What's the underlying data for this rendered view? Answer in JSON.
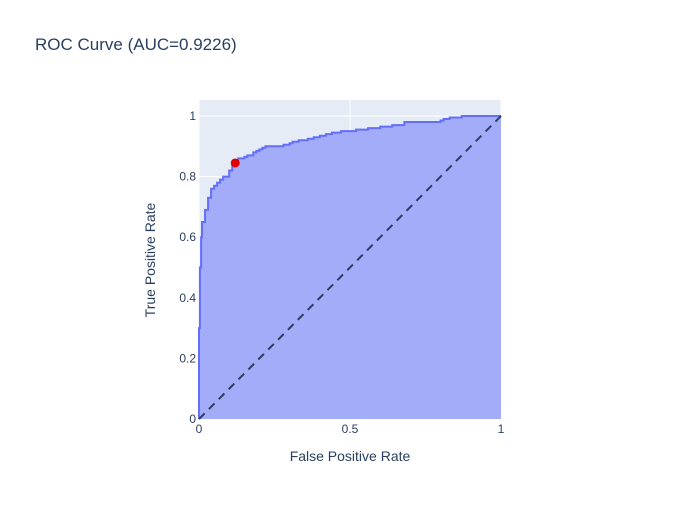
{
  "chart_data": {
    "type": "area",
    "title": "ROC Curve (AUC=0.9226)",
    "xlabel": "False Positive Rate",
    "ylabel": "True Positive Rate",
    "xlim": [
      0,
      1
    ],
    "ylim": [
      0,
      1
    ],
    "x_ticks": [
      0,
      0.5,
      1
    ],
    "x_tick_labels": [
      "0",
      "0.5",
      "1"
    ],
    "y_ticks": [
      0,
      0.2,
      0.4,
      0.6,
      0.8,
      1
    ],
    "y_tick_labels": [
      "0",
      "0.2",
      "0.4",
      "0.6",
      "0.8",
      "1"
    ],
    "grid": true,
    "legend": "none",
    "colors": {
      "plot_background": "#e5ecf6",
      "grid": "#ffffff",
      "curve_line": "#636efa",
      "curve_fill": "#a3acf9",
      "diagonal": "#2a3f5f",
      "marker": "#e00000",
      "text": "#2a3f5f"
    },
    "series": [
      {
        "style": "step-area",
        "x": [
          0,
          0,
          0.003,
          0.003,
          0.007,
          0.007,
          0.01,
          0.01,
          0.02,
          0.02,
          0.03,
          0.03,
          0.04,
          0.04,
          0.05,
          0.05,
          0.06,
          0.06,
          0.07,
          0.07,
          0.08,
          0.08,
          0.1,
          0.1,
          0.11,
          0.11,
          0.12,
          0.12,
          0.13,
          0.13,
          0.15,
          0.15,
          0.16,
          0.16,
          0.18,
          0.18,
          0.19,
          0.19,
          0.2,
          0.2,
          0.21,
          0.21,
          0.22,
          0.22,
          0.23,
          0.23,
          0.24,
          0.24,
          0.26,
          0.26,
          0.28,
          0.28,
          0.3,
          0.3,
          0.31,
          0.31,
          0.33,
          0.33,
          0.36,
          0.36,
          0.38,
          0.38,
          0.4,
          0.4,
          0.42,
          0.42,
          0.44,
          0.44,
          0.47,
          0.47,
          0.52,
          0.52,
          0.56,
          0.56,
          0.6,
          0.6,
          0.64,
          0.64,
          0.68,
          0.68,
          0.8,
          0.8,
          0.81,
          0.81,
          0.83,
          0.83,
          0.85,
          0.85,
          0.87,
          0.87,
          1
        ],
        "y": [
          0,
          0.3,
          0.3,
          0.5,
          0.5,
          0.6,
          0.6,
          0.65,
          0.65,
          0.69,
          0.69,
          0.73,
          0.73,
          0.76,
          0.76,
          0.77,
          0.77,
          0.78,
          0.78,
          0.79,
          0.79,
          0.8,
          0.8,
          0.82,
          0.82,
          0.84,
          0.84,
          0.85,
          0.85,
          0.86,
          0.86,
          0.865,
          0.865,
          0.87,
          0.87,
          0.88,
          0.88,
          0.885,
          0.885,
          0.89,
          0.89,
          0.895,
          0.895,
          0.9,
          0.9,
          0.9,
          0.9,
          0.9,
          0.9,
          0.9,
          0.9,
          0.905,
          0.905,
          0.91,
          0.91,
          0.915,
          0.915,
          0.92,
          0.92,
          0.925,
          0.925,
          0.93,
          0.93,
          0.935,
          0.935,
          0.94,
          0.94,
          0.945,
          0.945,
          0.95,
          0.95,
          0.955,
          0.955,
          0.96,
          0.96,
          0.965,
          0.965,
          0.97,
          0.97,
          0.98,
          0.98,
          0.985,
          0.985,
          0.99,
          0.99,
          0.995,
          0.995,
          0.995,
          0.995,
          1,
          1
        ]
      },
      {
        "style": "dashed-line",
        "x": [
          0,
          1
        ],
        "y": [
          0,
          1
        ]
      },
      {
        "style": "marker",
        "x": [
          0.12
        ],
        "y": [
          0.845
        ]
      }
    ]
  }
}
